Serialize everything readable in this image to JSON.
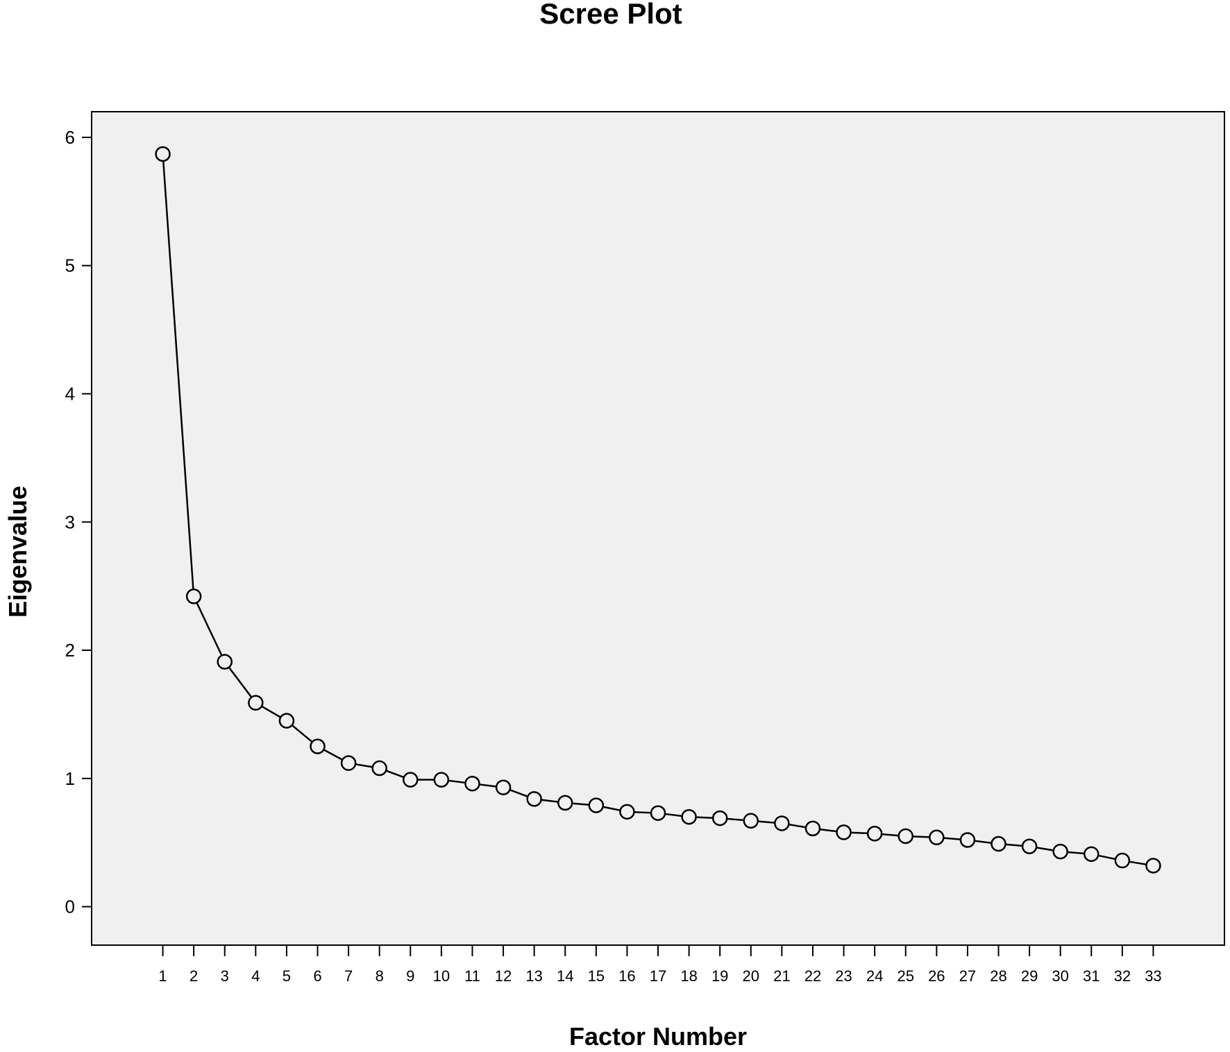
{
  "chart_data": {
    "type": "line",
    "title": "Scree Plot",
    "xlabel": "Factor Number",
    "ylabel": "Eigenvalue",
    "x": [
      1,
      2,
      3,
      4,
      5,
      6,
      7,
      8,
      9,
      10,
      11,
      12,
      13,
      14,
      15,
      16,
      17,
      18,
      19,
      20,
      21,
      22,
      23,
      24,
      25,
      26,
      27,
      28,
      29,
      30,
      31,
      32,
      33
    ],
    "y": [
      5.87,
      2.42,
      1.91,
      1.59,
      1.45,
      1.25,
      1.12,
      1.08,
      0.99,
      0.99,
      0.96,
      0.93,
      0.84,
      0.81,
      0.79,
      0.74,
      0.73,
      0.7,
      0.69,
      0.67,
      0.65,
      0.61,
      0.58,
      0.57,
      0.55,
      0.54,
      0.52,
      0.49,
      0.47,
      0.43,
      0.41,
      0.36,
      0.32
    ],
    "yticks": [
      0,
      1,
      2,
      3,
      4,
      5,
      6
    ],
    "ylim": [
      -0.3,
      6.2
    ],
    "xlim": [
      -1.3,
      35.3
    ],
    "marker": "open-circle",
    "grid": false,
    "colors": {
      "plot_background": "#f0f0f0",
      "line": "#000000",
      "marker_fill": "#f0f0f0"
    }
  }
}
